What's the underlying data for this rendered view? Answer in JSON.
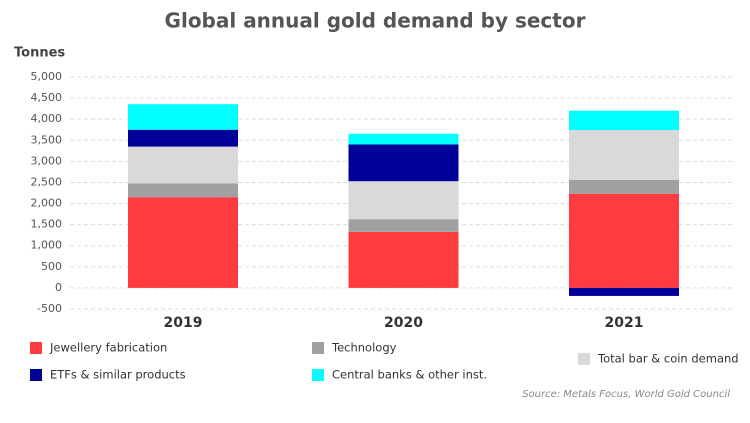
{
  "chart_data": {
    "type": "stacked-bar",
    "title": "Global annual gold demand by sector",
    "y_label": "Tonnes",
    "source": "Source: Metals Focus, World Gold Council",
    "categories": [
      "2019",
      "2020",
      "2021"
    ],
    "series": [
      {
        "name": "Jewellery fabrication",
        "color": "#ff3b3f",
        "values": [
          2150,
          1330,
          2230
        ]
      },
      {
        "name": "Technology",
        "color": "#a0a0a0",
        "values": [
          330,
          300,
          330
        ]
      },
      {
        "name": "Total bar & coin demand",
        "color": "#d9d9d9",
        "values": [
          870,
          900,
          1180
        ]
      },
      {
        "name": "ETFs & similar products",
        "color": "#000099",
        "values": [
          400,
          870,
          -190
        ]
      },
      {
        "name": "Central banks & other inst.",
        "color": "#00ffff",
        "values": [
          605,
          255,
          460
        ]
      }
    ],
    "ylim": [
      -500,
      5000
    ],
    "yticks": [
      -500,
      0,
      500,
      {
        "value": 1000,
        "label": "1,000"
      },
      {
        "value": 1500,
        "label": "1,500"
      },
      {
        "value": 2000,
        "label": "2,000"
      },
      {
        "value": 2500,
        "label": "2,500"
      },
      {
        "value": 3000,
        "label": "3,000"
      },
      {
        "value": 3500,
        "label": "3,500"
      },
      {
        "value": 4000,
        "label": "4,000"
      },
      {
        "value": 4500,
        "label": "4,500"
      },
      {
        "value": 5000,
        "label": "5,000"
      }
    ],
    "grid": true
  }
}
